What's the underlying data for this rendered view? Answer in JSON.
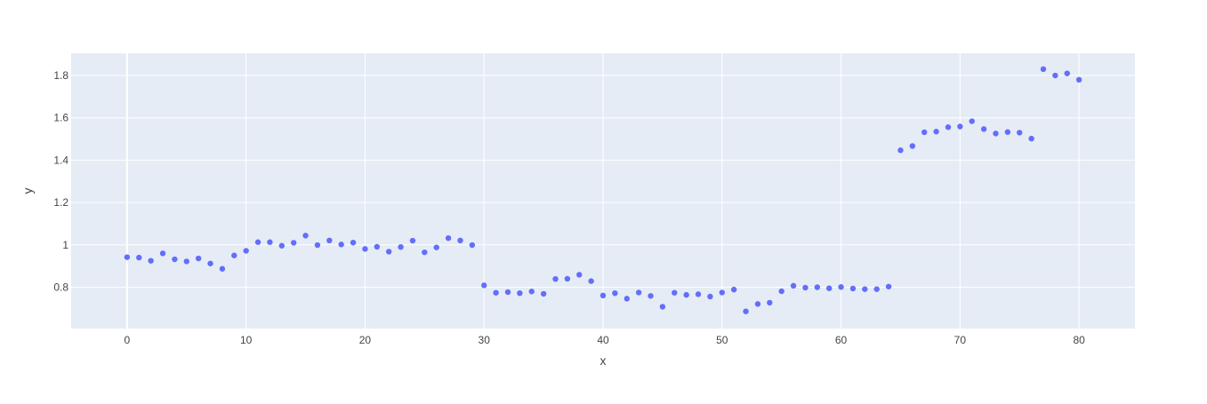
{
  "chart_data": {
    "type": "scatter",
    "title": "",
    "xlabel": "x",
    "ylabel": "y",
    "xlim": [
      -4.7,
      84.7
    ],
    "ylim": [
      0.605,
      1.905
    ],
    "grid": true,
    "xticks": [
      0,
      10,
      20,
      30,
      40,
      50,
      60,
      70,
      80
    ],
    "xtick_labels": [
      "0",
      "10",
      "20",
      "30",
      "40",
      "50",
      "60",
      "70",
      "80"
    ],
    "yticks": [
      0.8,
      1.0,
      1.2,
      1.4,
      1.6,
      1.8
    ],
    "ytick_labels": [
      "0.8",
      "1",
      "1.2",
      "1.4",
      "1.6",
      "1.8"
    ],
    "colors": {
      "marker": "#636efa",
      "plot_bg": "#e5ecf6",
      "grid": "#ffffff"
    },
    "series": [
      {
        "name": "y",
        "x": [
          0,
          1,
          2,
          3,
          4,
          5,
          6,
          7,
          8,
          9,
          10,
          11,
          12,
          13,
          14,
          15,
          16,
          17,
          18,
          19,
          20,
          21,
          22,
          23,
          24,
          25,
          26,
          27,
          28,
          29,
          30,
          31,
          32,
          33,
          34,
          35,
          36,
          37,
          38,
          39,
          40,
          41,
          42,
          43,
          44,
          45,
          46,
          47,
          48,
          49,
          50,
          51,
          52,
          53,
          54,
          55,
          56,
          57,
          58,
          59,
          60,
          61,
          62,
          63,
          64,
          65,
          66,
          67,
          68,
          69,
          70,
          71,
          72,
          73,
          74,
          75,
          76,
          77,
          78,
          79,
          80
        ],
        "y": [
          0.942,
          0.94,
          0.925,
          0.96,
          0.932,
          0.922,
          0.936,
          0.912,
          0.887,
          0.95,
          0.972,
          1.013,
          1.013,
          0.996,
          1.01,
          1.044,
          0.999,
          1.021,
          1.002,
          1.011,
          0.981,
          0.991,
          0.968,
          0.99,
          1.02,
          0.965,
          0.988,
          1.032,
          1.021,
          0.999,
          0.809,
          0.774,
          0.777,
          0.772,
          0.78,
          0.769,
          0.839,
          0.84,
          0.859,
          0.829,
          0.761,
          0.772,
          0.746,
          0.775,
          0.759,
          0.708,
          0.774,
          0.764,
          0.767,
          0.756,
          0.775,
          0.789,
          0.686,
          0.721,
          0.727,
          0.781,
          0.807,
          0.798,
          0.8,
          0.795,
          0.801,
          0.794,
          0.791,
          0.791,
          0.803,
          1.447,
          1.467,
          1.532,
          1.535,
          1.556,
          1.559,
          1.584,
          1.547,
          1.526,
          1.533,
          1.53,
          1.502,
          1.83,
          1.8,
          1.81,
          1.78
        ]
      }
    ]
  }
}
